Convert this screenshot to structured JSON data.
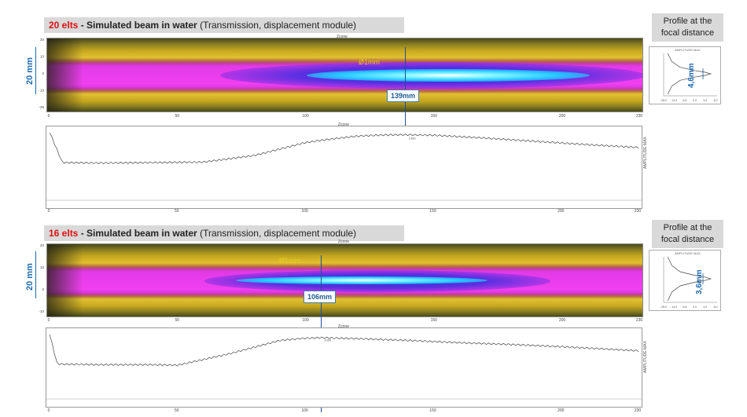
{
  "top": {
    "elts": "20 elts",
    "title_bold": " - Simulated beam in water",
    "title_rest": " (Transmission, displacement module)",
    "mm_label": "20 mm",
    "focal_label": "Ø1mm",
    "distance_label": "139mm",
    "zone_label": "Zcone",
    "profile_title": [
      "Profile at the",
      "focal distance"
    ],
    "profile_width": "4,6mm",
    "profile_small_title": "AMPLITUDE MAX",
    "profile_side_label": "ZONE"
  },
  "bottom": {
    "elts": "16 elts",
    "title_bold": " - Simulated beam in water",
    "title_rest": " (Transmission, displacement module)",
    "mm_label": "20 mm",
    "focal_label": "Ø1mm",
    "distance_label": "106mm",
    "zone_label": "Zcone",
    "profile_title": [
      "Profile at the",
      "focal distance"
    ],
    "profile_width": "3,6mm",
    "profile_small_title": "AMPLITUDE MAX",
    "profile_side_label": "ZONE"
  },
  "colors": {
    "red_accent": "#dd1111",
    "marker_blue": "#1e5c96",
    "focal_yellow": "#e0d020",
    "plot_line": "#444444"
  },
  "chart_data": [
    {
      "type": "line",
      "id": "top-axial-profile",
      "x": [
        0,
        5,
        20,
        40,
        60,
        80,
        100,
        110,
        120,
        130,
        139,
        150,
        170,
        190,
        210,
        230
      ],
      "y": [
        -1.0,
        -14.0,
        -14.2,
        -14.0,
        -13.8,
        -11.0,
        -5.5,
        -4.0,
        -2.8,
        -2.3,
        -2.2,
        -2.4,
        -3.6,
        -5.0,
        -6.4,
        -7.6
      ],
      "xlim": [
        0,
        230
      ],
      "ylim": [
        -30,
        0
      ],
      "x_ticks": [
        "0",
        "50",
        "100",
        "150",
        "200",
        "230"
      ],
      "label_near_peak": "1385",
      "right_axis_label": "AMPLITUDE MAX",
      "marker_x": 139
    },
    {
      "type": "line",
      "id": "bottom-axial-profile",
      "x": [
        0,
        3,
        20,
        40,
        50,
        70,
        90,
        100,
        106,
        120,
        140,
        160,
        180,
        200,
        230
      ],
      "y": [
        -1.0,
        -14.5,
        -14.8,
        -14.8,
        -15.0,
        -10.0,
        -4.0,
        -3.0,
        -2.8,
        -3.2,
        -4.0,
        -5.0,
        -5.8,
        -6.8,
        -8.6
      ],
      "xlim": [
        0,
        230
      ],
      "ylim": [
        -30,
        0
      ],
      "x_ticks": [
        "0",
        "50",
        "100",
        "150",
        "200",
        "230"
      ],
      "label_near_peak": "1065",
      "right_axis_label": "AMPLITUDE MAX",
      "marker_x": 106
    },
    {
      "type": "heatmap",
      "id": "top-beam-map",
      "x_ticks": [
        "0",
        "50",
        "100",
        "150",
        "200",
        "230"
      ],
      "y_ticks": [
        "-25",
        "-10",
        "0",
        "10",
        "20"
      ],
      "xlim": [
        0,
        230
      ],
      "focus_center_x": 139,
      "color_scale": "yellow-magenta-blue-white"
    },
    {
      "type": "heatmap",
      "id": "bottom-beam-map",
      "x_ticks": [
        "0",
        "50",
        "100",
        "150",
        "200",
        "230"
      ],
      "y_ticks": [
        "-10",
        "0",
        "10",
        "20"
      ],
      "xlim": [
        0,
        230
      ],
      "focus_center_x": 106,
      "color_scale": "yellow-magenta-blue-white"
    },
    {
      "type": "line",
      "id": "top-lateral-profile",
      "x": [
        -25,
        -15,
        -8,
        -4,
        -2,
        0,
        2,
        4,
        8,
        15,
        25
      ],
      "y": [
        -22,
        -20,
        -16,
        -9,
        -4,
        -1,
        -4,
        -9,
        -16,
        -20,
        -22
      ],
      "x_ticks": [
        "-28.0",
        "-14.0",
        "-5.6",
        "0.0",
        "4.0",
        "6.0"
      ]
    },
    {
      "type": "line",
      "id": "bottom-lateral-profile",
      "x": [
        -25,
        -15,
        -8,
        -4,
        -2,
        0,
        2,
        4,
        8,
        15,
        25
      ],
      "y": [
        -22,
        -20,
        -16,
        -9,
        -4,
        -1,
        -4,
        -9,
        -16,
        -20,
        -22
      ],
      "x_ticks": [
        "-28.0",
        "-14.0",
        "-5.6",
        "0.0",
        "4.0",
        "6.0"
      ]
    }
  ]
}
